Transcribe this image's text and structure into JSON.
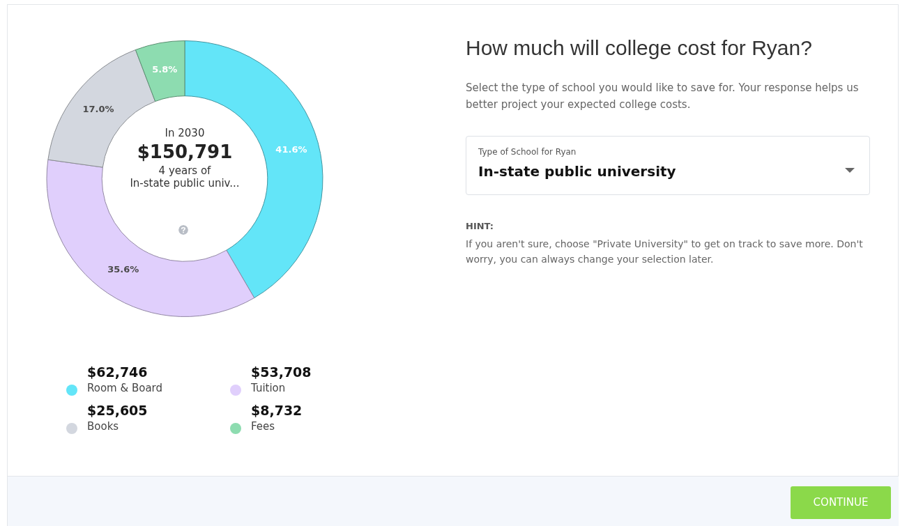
{
  "chart_data": {
    "type": "donut",
    "title": "How much will college cost for Ryan?",
    "subtitle": "Select the type of school you would like to save for. Your response helps us better project your expected college costs.",
    "categories": [
      "Room & Board",
      "Tuition",
      "Books",
      "Fees"
    ],
    "values": [
      41.6,
      35.6,
      17.0,
      5.8
    ],
    "colors": [
      "#63e5f8",
      "#e0cffc",
      "#d3d7df",
      "#8ddcb0"
    ],
    "value_labels": [
      "41.6%",
      "35.6%",
      "17.0%",
      "5.8%"
    ],
    "legend": "bottom",
    "annotations": [
      "In 2030",
      "$150,791",
      "4 years of",
      "In-state public univ...",
      "Type of School for Ryan",
      "In-state public university",
      "HINT:",
      "If you aren't sure, choose \"Private University\" to get on track to save more. Don't worry, you can always change your selection later.",
      "CONTINUE",
      "$62,746",
      "$53,708",
      "$25,605",
      "$8,732"
    ]
  }
}
